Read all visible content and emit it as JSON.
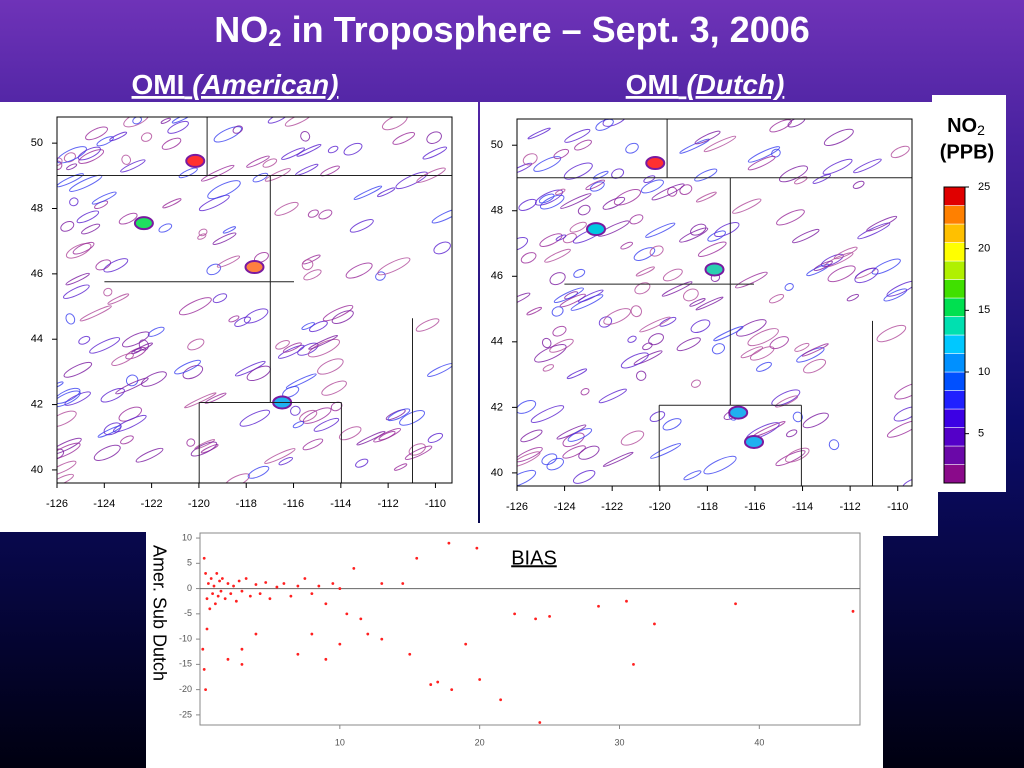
{
  "title": {
    "text1": "NO",
    "sub": "2",
    "text2": " in Troposphere – Sept. 3, 2006"
  },
  "maps": [
    {
      "name": "OMI",
      "variant": "(American)",
      "xticks": [
        -126,
        -124,
        -122,
        -120,
        -118,
        -116,
        -114,
        -112,
        -110
      ],
      "yticks": [
        40,
        42,
        44,
        46,
        48,
        50
      ],
      "xlim": [
        -126,
        -109.3
      ],
      "ylim": [
        39.6,
        50.8
      ]
    },
    {
      "name": "OMI",
      "variant": "(Dutch)",
      "xticks": [
        -126,
        -124,
        -122,
        -120,
        -118,
        -116,
        -114,
        -112,
        -110
      ],
      "yticks": [
        40,
        42,
        44,
        46,
        48,
        50
      ],
      "xlim": [
        -126,
        -109.4
      ],
      "ylim": [
        39.6,
        50.8
      ]
    }
  ],
  "colorbar": {
    "title": "NO",
    "sub": "2",
    "unit": "(PPB)",
    "lim": [
      1,
      25
    ],
    "ticks": [
      5,
      10,
      15,
      20,
      25
    ],
    "colors": [
      "#8a0a8a",
      "#6a08a8",
      "#5400c8",
      "#3c00e4",
      "#2020ff",
      "#0050ff",
      "#0090ff",
      "#00c8ff",
      "#00e0b0",
      "#00e050",
      "#40e000",
      "#b0f000",
      "#ffff00",
      "#ffc000",
      "#ff8000",
      "#e00000"
    ]
  },
  "chart_data": {
    "type": "scatter",
    "title": "BIAS",
    "y_label": "Amer.  Sub  Dutch",
    "color": "#ff2020",
    "xlim": [
      0,
      47.2
    ],
    "ylim": [
      -27,
      11
    ],
    "xticks": [
      10,
      20,
      30,
      40
    ],
    "yticks": [
      10,
      5,
      0,
      -5,
      -10,
      -15,
      -20,
      -25
    ],
    "x": [
      0.3,
      0.4,
      0.5,
      0.6,
      0.7,
      0.8,
      0.9,
      1,
      1.1,
      1.2,
      1.3,
      1.4,
      1.5,
      1.6,
      1.8,
      2,
      2.2,
      2.4,
      2.6,
      2.8,
      3,
      3.3,
      3.6,
      4,
      4.3,
      4.7,
      5,
      5.5,
      6,
      6.5,
      7,
      7.5,
      8,
      8.5,
      9,
      9.5,
      10,
      0.2,
      0.3,
      0.5,
      0.4,
      11,
      13,
      14.5,
      15.5,
      17.8,
      19.8,
      10.5,
      11.5,
      12,
      13,
      15,
      16.5,
      17,
      18,
      19,
      20,
      21.5,
      22.5,
      24,
      25,
      24.3,
      28.5,
      30.5,
      32.5,
      38.3,
      46.7,
      31,
      8,
      7,
      9,
      4,
      3,
      3,
      2,
      10
    ],
    "y": [
      6,
      3,
      -2,
      1,
      -4,
      2,
      -1,
      0.5,
      -3,
      3,
      -1.5,
      1.5,
      -0.5,
      2,
      -2,
      1,
      -1,
      0.5,
      -2.5,
      1.5,
      -0.5,
      2,
      -1.5,
      0.8,
      -1,
      1.2,
      -2,
      0.3,
      1,
      -1.5,
      0.5,
      2,
      -1,
      0.5,
      -3,
      1,
      0,
      -12,
      -16,
      -8,
      -20,
      4,
      1,
      1,
      6,
      9,
      8,
      -5,
      -6,
      -9,
      -10,
      -13,
      -19,
      -18.5,
      -20,
      -11,
      -18,
      -22,
      -5,
      -6,
      -5.5,
      -26.5,
      -3.5,
      -2.5,
      -7,
      -3,
      -4.5,
      -15,
      -9,
      -13,
      -14,
      -9,
      -12,
      -15,
      -14,
      -11
    ]
  }
}
